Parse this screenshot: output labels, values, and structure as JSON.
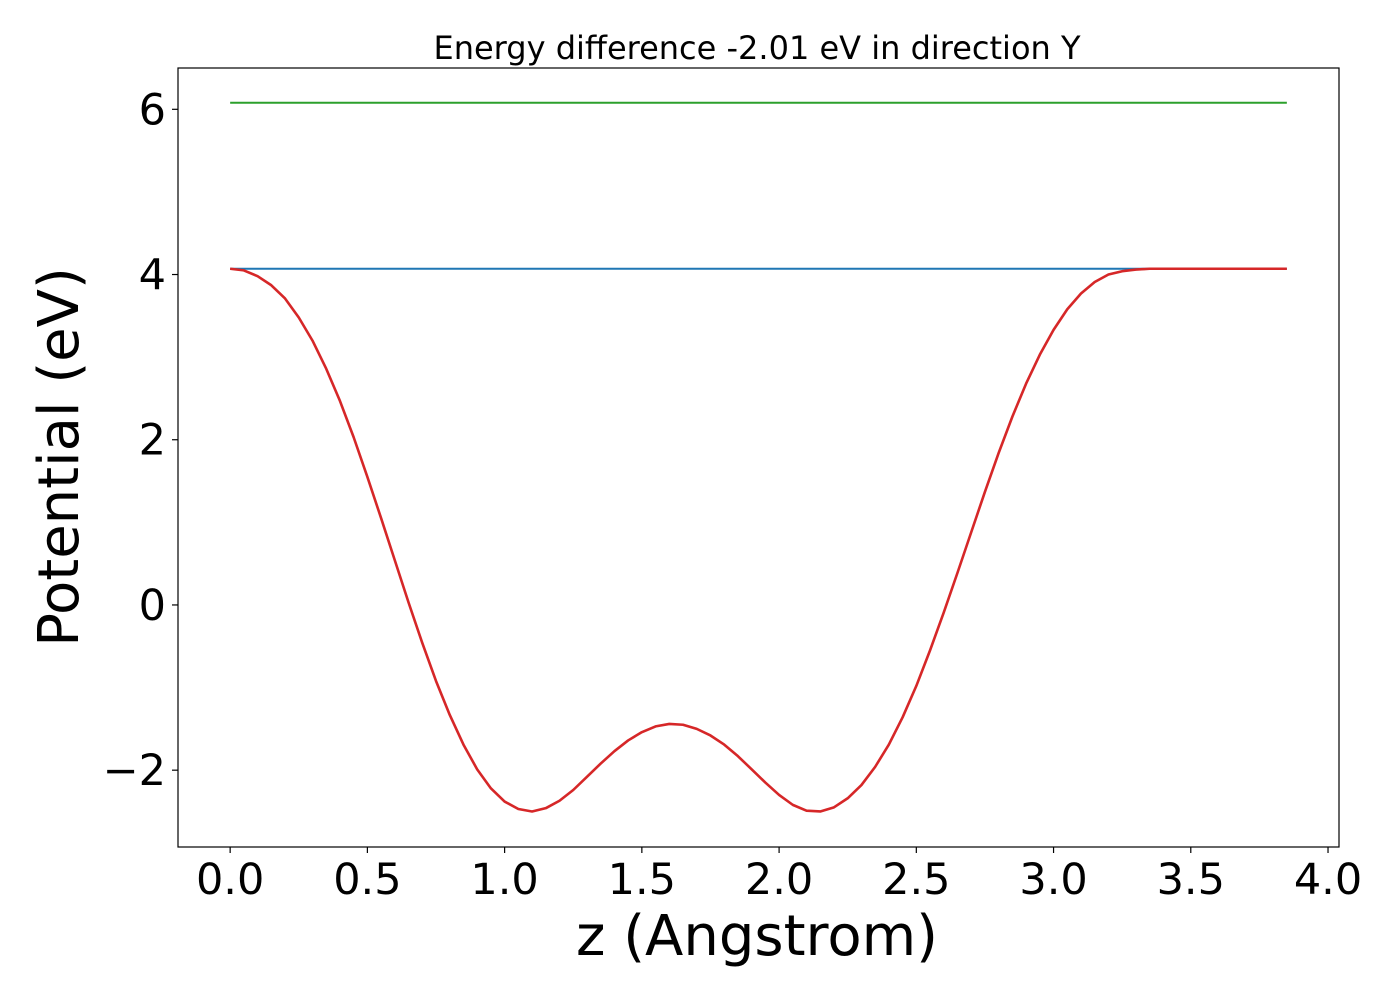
{
  "chart_data": {
    "type": "line",
    "title": "Energy difference -2.01 eV in direction Y",
    "xlabel": "z (Angstrom)",
    "ylabel": "Potential (eV)",
    "xlim": [
      -0.19,
      4.04
    ],
    "ylim": [
      -2.93,
      6.5
    ],
    "x_ticks": [
      0.0,
      0.5,
      1.0,
      1.5,
      2.0,
      2.5,
      3.0,
      3.5,
      4.0
    ],
    "x_tick_labels": [
      "0.0",
      "0.5",
      "1.0",
      "1.5",
      "2.0",
      "2.5",
      "3.0",
      "3.5",
      "4.0"
    ],
    "y_ticks": [
      -2,
      0,
      2,
      4,
      6
    ],
    "y_tick_labels": [
      "−2",
      "0",
      "2",
      "4",
      "6"
    ],
    "grid": false,
    "legend": "none",
    "series": [
      {
        "color": "#2ca02c",
        "x": [
          0.0,
          3.85
        ],
        "y": [
          6.08,
          6.08
        ]
      },
      {
        "color": "#1f77b4",
        "x": [
          0.0,
          3.85
        ],
        "y": [
          4.07,
          4.07
        ]
      },
      {
        "color": "#d62728",
        "x": [
          0.0,
          0.05,
          0.1,
          0.15,
          0.2,
          0.25,
          0.3,
          0.35,
          0.4,
          0.45,
          0.5,
          0.55,
          0.6,
          0.65,
          0.7,
          0.75,
          0.8,
          0.85,
          0.9,
          0.95,
          1.0,
          1.05,
          1.1,
          1.15,
          1.2,
          1.25,
          1.3,
          1.35,
          1.4,
          1.45,
          1.5,
          1.55,
          1.6,
          1.65,
          1.7,
          1.75,
          1.8,
          1.85,
          1.9,
          1.95,
          2.0,
          2.05,
          2.1,
          2.15,
          2.2,
          2.25,
          2.3,
          2.35,
          2.4,
          2.45,
          2.5,
          2.55,
          2.6,
          2.65,
          2.7,
          2.75,
          2.8,
          2.85,
          2.9,
          2.95,
          3.0,
          3.05,
          3.1,
          3.15,
          3.2,
          3.25,
          3.3,
          3.35,
          3.4,
          3.45,
          3.5,
          3.55,
          3.6,
          3.65,
          3.7,
          3.75,
          3.8,
          3.85
        ],
        "y": [
          4.07,
          4.05,
          3.98,
          3.87,
          3.71,
          3.48,
          3.2,
          2.86,
          2.47,
          2.03,
          1.55,
          1.05,
          0.54,
          0.03,
          -0.46,
          -0.92,
          -1.33,
          -1.69,
          -1.99,
          -2.22,
          -2.38,
          -2.47,
          -2.5,
          -2.46,
          -2.37,
          -2.24,
          -2.08,
          -1.92,
          -1.77,
          -1.64,
          -1.54,
          -1.47,
          -1.44,
          -1.45,
          -1.5,
          -1.58,
          -1.69,
          -1.83,
          -1.99,
          -2.15,
          -2.3,
          -2.42,
          -2.49,
          -2.5,
          -2.45,
          -2.34,
          -2.18,
          -1.96,
          -1.69,
          -1.36,
          -0.98,
          -0.55,
          -0.09,
          0.39,
          0.88,
          1.37,
          1.84,
          2.28,
          2.68,
          3.03,
          3.33,
          3.58,
          3.77,
          3.91,
          4.0,
          4.04,
          4.06,
          4.07,
          4.07,
          4.07,
          4.07,
          4.07,
          4.07,
          4.07,
          4.07,
          4.07,
          4.07,
          4.07
        ]
      }
    ]
  }
}
